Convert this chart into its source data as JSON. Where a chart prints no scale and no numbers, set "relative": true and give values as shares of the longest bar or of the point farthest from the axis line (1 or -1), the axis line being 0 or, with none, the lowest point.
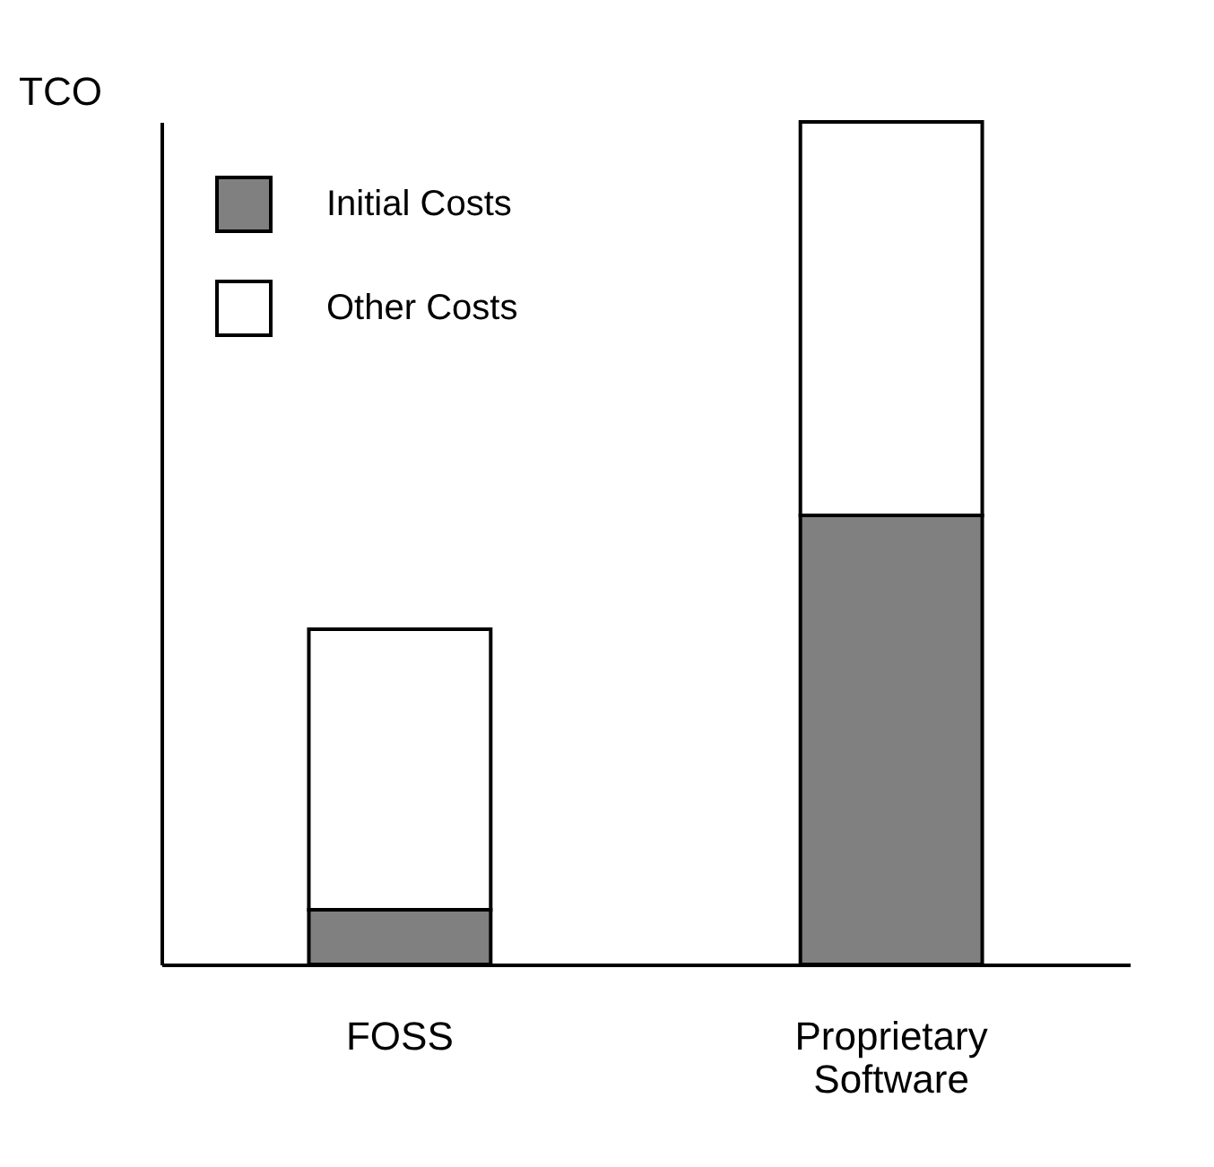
{
  "chart_data": {
    "type": "bar",
    "ylabel": "TCO",
    "categories": [
      "FOSS",
      "Proprietary Software"
    ],
    "stacked": true,
    "relative": true,
    "legend": "top left",
    "series": [
      {
        "name": "Initial Costs",
        "color": "#808080",
        "values": [
          0.065,
          0.533
        ]
      },
      {
        "name": "Other Costs",
        "color": "#ffffff",
        "values": [
          0.333,
          0.467
        ]
      }
    ]
  }
}
